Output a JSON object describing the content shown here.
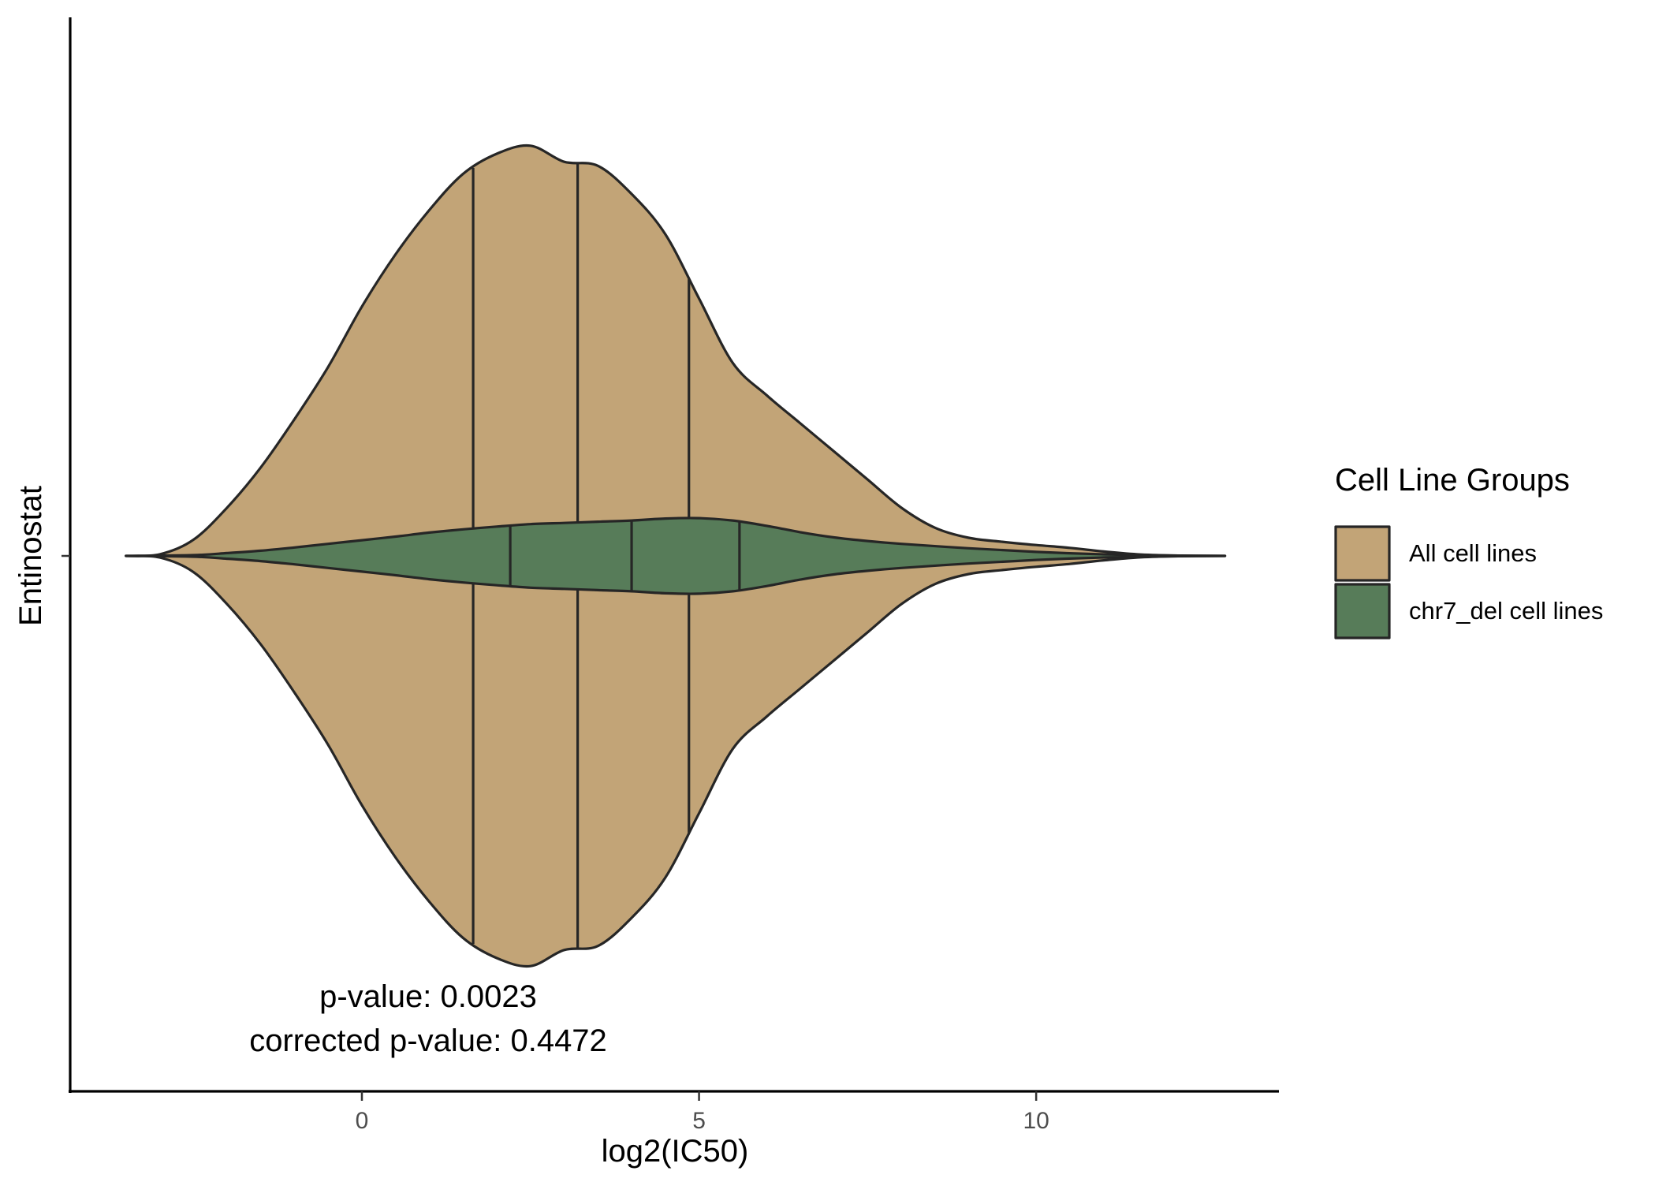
{
  "chart_data": {
    "type": "violin",
    "title": "",
    "xlabel": "log2(IC50)",
    "ylabel": "Entinostat",
    "xlim": [
      -4.35,
      13.6
    ],
    "x_ticks": [
      0,
      5,
      10
    ],
    "grid": false,
    "orientation": "horizontal",
    "legend": {
      "title": "Cell Line Groups",
      "position": "right",
      "items": [
        {
          "label": "All cell lines",
          "color": "#C2A477"
        },
        {
          "label": "chr7_del cell lines",
          "color": "#577C59"
        }
      ]
    },
    "annotations": [
      "p-value: 0.0023",
      "corrected p-value: 0.4472"
    ],
    "series": [
      {
        "name": "All cell lines",
        "color": "#C2A477",
        "range": [
          -3.5,
          12.8
        ],
        "quantiles": [
          1.65,
          3.2,
          4.85
        ],
        "density_profile": [
          [
            -3.5,
            0.0
          ],
          [
            -3.0,
            0.004
          ],
          [
            -2.5,
            0.04
          ],
          [
            -2.0,
            0.12
          ],
          [
            -1.5,
            0.22
          ],
          [
            -1.0,
            0.34
          ],
          [
            -0.5,
            0.47
          ],
          [
            0.0,
            0.62
          ],
          [
            0.5,
            0.75
          ],
          [
            1.0,
            0.86
          ],
          [
            1.5,
            0.95
          ],
          [
            2.0,
            1.0
          ],
          [
            2.5,
            1.02
          ],
          [
            3.0,
            0.98
          ],
          [
            3.5,
            0.97
          ],
          [
            4.0,
            0.9
          ],
          [
            4.5,
            0.8
          ],
          [
            5.0,
            0.64
          ],
          [
            5.5,
            0.48
          ],
          [
            6.0,
            0.4
          ],
          [
            6.5,
            0.33
          ],
          [
            7.0,
            0.26
          ],
          [
            7.5,
            0.19
          ],
          [
            8.0,
            0.12
          ],
          [
            8.5,
            0.07
          ],
          [
            9.0,
            0.045
          ],
          [
            9.5,
            0.035
          ],
          [
            10.0,
            0.027
          ],
          [
            10.5,
            0.02
          ],
          [
            11.0,
            0.011
          ],
          [
            11.5,
            0.004
          ],
          [
            12.0,
            0.001
          ],
          [
            12.8,
            0.0
          ]
        ]
      },
      {
        "name": "chr7_del cell lines",
        "color": "#577C59",
        "range": [
          -3.5,
          12.8
        ],
        "quantiles": [
          2.2,
          4.0,
          5.6
        ],
        "density_profile": [
          [
            -3.5,
            0.0
          ],
          [
            -2.5,
            0.002
          ],
          [
            -2.0,
            0.007
          ],
          [
            -1.5,
            0.013
          ],
          [
            -1.0,
            0.021
          ],
          [
            -0.5,
            0.03
          ],
          [
            0.0,
            0.039
          ],
          [
            0.5,
            0.048
          ],
          [
            1.0,
            0.058
          ],
          [
            1.5,
            0.066
          ],
          [
            2.0,
            0.073
          ],
          [
            2.5,
            0.079
          ],
          [
            3.0,
            0.082
          ],
          [
            3.5,
            0.085
          ],
          [
            4.0,
            0.088
          ],
          [
            4.5,
            0.093
          ],
          [
            5.0,
            0.094
          ],
          [
            5.5,
            0.088
          ],
          [
            6.0,
            0.075
          ],
          [
            6.5,
            0.059
          ],
          [
            7.0,
            0.046
          ],
          [
            7.5,
            0.037
          ],
          [
            8.0,
            0.03
          ],
          [
            9.0,
            0.019
          ],
          [
            10.0,
            0.01
          ],
          [
            11.0,
            0.004
          ],
          [
            12.0,
            0.001
          ],
          [
            12.8,
            0.0
          ]
        ]
      }
    ]
  }
}
